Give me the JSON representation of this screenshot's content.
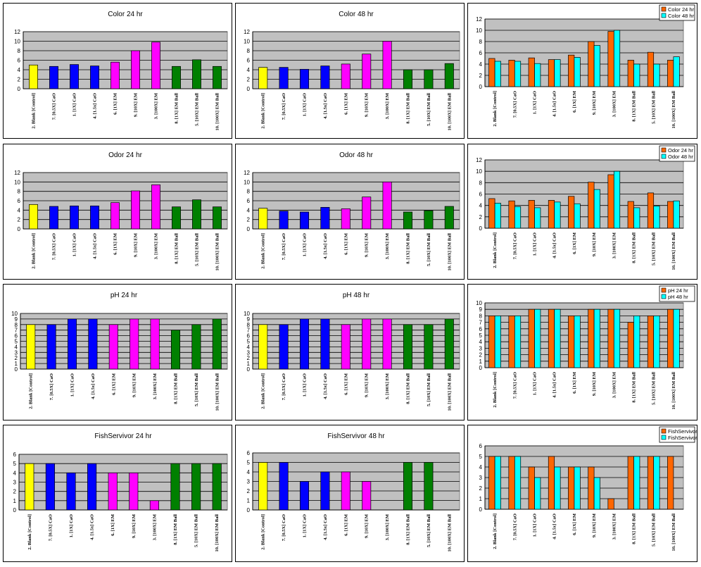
{
  "chart_data": [
    {
      "id": "c0",
      "type": "bar",
      "title": "Color 24 hr",
      "ylim": [
        0,
        12
      ],
      "yticks": [
        0,
        2,
        4,
        6,
        8,
        10,
        12
      ],
      "categories": [
        "2. Blank [Control]",
        "7. [0.5X] CaO",
        "1. [1X] CaO",
        "4. [1.5x] CaO",
        "6. [1X] EM",
        "9. [10X] EM",
        "3. [100X] EM",
        "8. [1X] EM Ball",
        "5. [10X] EM Ball",
        "10. [100X] EM Ball"
      ],
      "values": [
        5,
        4.7,
        5.1,
        4.8,
        5.6,
        8,
        9.8,
        4.7,
        6.1,
        4.7
      ],
      "colors": [
        "#ffff00",
        "#0000ff",
        "#0000ff",
        "#0000ff",
        "#ff00ff",
        "#ff00ff",
        "#ff00ff",
        "#008000",
        "#008000",
        "#008000"
      ]
    },
    {
      "id": "c1",
      "type": "bar",
      "title": "Color 48 hr",
      "ylim": [
        0,
        12
      ],
      "yticks": [
        0,
        2,
        4,
        6,
        8,
        10,
        12
      ],
      "categories": [
        "2. Blank [Control]",
        "7. [0.5X] CaO",
        "1. [1X] CaO",
        "4. [1.5x] CaO",
        "6. [1X] EM",
        "9. [10X] EM",
        "3. [100X] EM",
        "8. [1X] EM Ball",
        "5. [10X] EM Ball",
        "10. [100X] EM Ball"
      ],
      "values": [
        4.5,
        4.5,
        4.1,
        4.8,
        5.2,
        7.3,
        10,
        4,
        4,
        5.3
      ],
      "colors": [
        "#ffff00",
        "#0000ff",
        "#0000ff",
        "#0000ff",
        "#ff00ff",
        "#ff00ff",
        "#ff00ff",
        "#008000",
        "#008000",
        "#008000"
      ]
    },
    {
      "id": "c2",
      "type": "bar",
      "ylim": [
        0,
        12
      ],
      "yticks": [
        0,
        2,
        4,
        6,
        8,
        10,
        12
      ],
      "categories": [
        "2. Blank [Control]",
        "7. [0.5X] CaO",
        "1. [1X] CaO",
        "4. [1.5x] CaO",
        "6. [1X] EM",
        "9. [10X] EM",
        "3. [100X] EM",
        "8. [1X] EM Ball",
        "5. [10X] EM Ball",
        "10. [100X] EM Ball"
      ],
      "series": [
        {
          "name": "Color 24 hr",
          "color": "#ff6600",
          "values": [
            5,
            4.7,
            5.1,
            4.8,
            5.6,
            8,
            9.8,
            4.7,
            6.1,
            4.7
          ]
        },
        {
          "name": "Color 48 hr",
          "color": "#00ffff",
          "values": [
            4.5,
            4.5,
            4.1,
            4.8,
            5.2,
            7.3,
            10,
            4,
            4,
            5.3
          ]
        }
      ],
      "legend": "top-right"
    },
    {
      "id": "c3",
      "type": "bar",
      "title": "Odor 24 hr",
      "ylim": [
        0,
        12
      ],
      "yticks": [
        0,
        2,
        4,
        6,
        8,
        10,
        12
      ],
      "categories": [
        "2. Blank [Control]",
        "7. [0.5X] CaO",
        "1. [1X] CaO",
        "4. [1.5x] CaO",
        "6. [1X] EM",
        "9. [10X] EM",
        "3. [100X] EM",
        "8. [1X] EM Ball",
        "5. [10X] EM Ball",
        "10. [100X] EM Ball"
      ],
      "values": [
        5.2,
        4.8,
        4.9,
        4.9,
        5.6,
        8.1,
        9.4,
        4.7,
        6.2,
        4.7
      ],
      "colors": [
        "#ffff00",
        "#0000ff",
        "#0000ff",
        "#0000ff",
        "#ff00ff",
        "#ff00ff",
        "#ff00ff",
        "#008000",
        "#008000",
        "#008000"
      ]
    },
    {
      "id": "c4",
      "type": "bar",
      "title": "Odor 48 hr",
      "ylim": [
        0,
        12
      ],
      "yticks": [
        0,
        2,
        4,
        6,
        8,
        10,
        12
      ],
      "categories": [
        "2. Blank [Control]",
        "7. [0.5X] CaO",
        "1. [1X] CaO",
        "4. [1.5x] CaO",
        "6. [1X] EM",
        "9. [10X] EM",
        "3. [100X] EM",
        "8. [1X] EM Ball",
        "5. [10X] EM Ball",
        "10. [100X] EM Ball"
      ],
      "values": [
        4.4,
        3.8,
        3.6,
        4.6,
        4.3,
        6.8,
        10,
        3.6,
        3.9,
        4.8
      ],
      "colors": [
        "#ffff00",
        "#0000ff",
        "#0000ff",
        "#0000ff",
        "#ff00ff",
        "#ff00ff",
        "#ff00ff",
        "#008000",
        "#008000",
        "#008000"
      ]
    },
    {
      "id": "c5",
      "type": "bar",
      "ylim": [
        0,
        12
      ],
      "yticks": [
        0,
        2,
        4,
        6,
        8,
        10,
        12
      ],
      "categories": [
        "2. Blank [Control]",
        "7. [0.5X] CaO",
        "1. [1X] CaO",
        "4. [1.5x] CaO",
        "6. [1X] EM",
        "9. [10X] EM",
        "3. [100X] EM",
        "8. [1X] EM Ball",
        "5. [10X] EM Ball",
        "10. [100X] EM Ball"
      ],
      "series": [
        {
          "name": "Odor 24 hr",
          "color": "#ff6600",
          "values": [
            5.2,
            4.8,
            4.9,
            4.9,
            5.6,
            8.1,
            9.4,
            4.7,
            6.2,
            4.7
          ]
        },
        {
          "name": "Odor 48 hr",
          "color": "#00ffff",
          "values": [
            4.4,
            3.8,
            3.6,
            4.6,
            4.3,
            6.8,
            10,
            3.6,
            3.9,
            4.8
          ]
        }
      ],
      "legend": "top-right"
    },
    {
      "id": "c6",
      "type": "bar",
      "title": "pH 24 hr",
      "ylim": [
        0,
        10
      ],
      "yticks": [
        0,
        1,
        2,
        3,
        4,
        5,
        6,
        7,
        8,
        9,
        10
      ],
      "categories": [
        "2. Blank [Control]",
        "7. [0.5X] CaO",
        "1. [1X] CaO",
        "4. [1.5x] CaO",
        "6. [1X] EM",
        "9. [10X] EM",
        "3. [100X] EM",
        "8. [1X] EM Ball",
        "5. [10X] EM Ball",
        "10. [100X] EM Ball"
      ],
      "values": [
        8,
        8,
        9,
        9,
        8,
        9,
        9,
        7,
        8,
        9
      ],
      "colors": [
        "#ffff00",
        "#0000ff",
        "#0000ff",
        "#0000ff",
        "#ff00ff",
        "#ff00ff",
        "#ff00ff",
        "#008000",
        "#008000",
        "#008000"
      ]
    },
    {
      "id": "c7",
      "type": "bar",
      "title": "pH 48 hr",
      "ylim": [
        0,
        10
      ],
      "yticks": [
        0,
        1,
        2,
        3,
        4,
        5,
        6,
        7,
        8,
        9,
        10
      ],
      "categories": [
        "2. Blank [Control]",
        "7. [0.5X] CaO",
        "1. [1X] CaO",
        "4. [1.5x] CaO",
        "6. [1X] EM",
        "9. [10X] EM",
        "3. [100X] EM",
        "8. [1X] EM Ball",
        "5. [10X] EM Ball",
        "10. [100X] EM Ball"
      ],
      "values": [
        8,
        8,
        9,
        9,
        8,
        9,
        9,
        8,
        8,
        9
      ],
      "colors": [
        "#ffff00",
        "#0000ff",
        "#0000ff",
        "#0000ff",
        "#ff00ff",
        "#ff00ff",
        "#ff00ff",
        "#008000",
        "#008000",
        "#008000"
      ]
    },
    {
      "id": "c8",
      "type": "bar",
      "ylim": [
        0,
        10
      ],
      "yticks": [
        0,
        1,
        2,
        3,
        4,
        5,
        6,
        7,
        8,
        9,
        10
      ],
      "categories": [
        "2. Blank [Control]",
        "7. [0.5X] CaO",
        "1. [1X] CaO",
        "4. [1.5x] CaO",
        "6. [1X] EM",
        "9. [10X] EM",
        "3. [100X] EM",
        "8. [1X] EM Ball",
        "5. [10X] EM Ball",
        "10. [100X] EM Ball"
      ],
      "series": [
        {
          "name": "pH 24 hr",
          "color": "#ff6600",
          "values": [
            8,
            8,
            9,
            9,
            8,
            9,
            9,
            7,
            8,
            9
          ]
        },
        {
          "name": "pH 48 hr",
          "color": "#00ffff",
          "values": [
            8,
            8,
            9,
            9,
            8,
            9,
            9,
            8,
            8,
            9
          ]
        }
      ],
      "legend": "top-right"
    },
    {
      "id": "c9",
      "type": "bar",
      "title": "FishServivor 24 hr",
      "ylim": [
        0,
        6
      ],
      "yticks": [
        0,
        1,
        2,
        3,
        4,
        5,
        6
      ],
      "categories": [
        "2. Blank [Control]",
        "7. [0.5X] CaO",
        "1. [1X] CaO",
        "4. [1.5x] CaO",
        "6. [1X] EM",
        "9. [10X] EM",
        "3. [100X] EM",
        "8. [1X] EM Ball",
        "5. [10X] EM Ball",
        "10. [100X] EM Ball"
      ],
      "values": [
        5,
        5,
        4,
        5,
        4,
        4,
        1,
        5,
        5,
        5
      ],
      "colors": [
        "#ffff00",
        "#0000ff",
        "#0000ff",
        "#0000ff",
        "#ff00ff",
        "#ff00ff",
        "#ff00ff",
        "#008000",
        "#008000",
        "#008000"
      ]
    },
    {
      "id": "c10",
      "type": "bar",
      "title": "FishServivor 48 hr",
      "ylim": [
        0,
        6
      ],
      "yticks": [
        0,
        1,
        2,
        3,
        4,
        5,
        6
      ],
      "categories": [
        "2. Blank [Control]",
        "7. [0.5X] CaO",
        "1. [1X] CaO",
        "4. [1.5x] CaO",
        "6. [1X] EM",
        "9. [10X] EM",
        "3. [100X] EM",
        "8. [1X] EM Ball",
        "5. [10X] EM Ball",
        "10. [100X] EM Ball"
      ],
      "values": [
        5,
        5,
        3,
        4,
        4,
        3,
        0,
        5,
        5,
        0
      ],
      "colors": [
        "#ffff00",
        "#0000ff",
        "#0000ff",
        "#0000ff",
        "#ff00ff",
        "#ff00ff",
        "#ff00ff",
        "#008000",
        "#008000",
        "#008000"
      ]
    },
    {
      "id": "c11",
      "type": "bar",
      "ylim": [
        0,
        6
      ],
      "yticks": [
        0,
        1,
        2,
        3,
        4,
        5,
        6
      ],
      "categories": [
        "2. Blank [Control]",
        "7. [0.5X] CaO",
        "1. [1X] CaO",
        "4. [1.5x] CaO",
        "6. [1X] EM",
        "9. [10X] EM",
        "3. [100X] EM",
        "8. [1X] EM Ball",
        "5. [10X] EM Ball",
        "10. [100X] EM Ball"
      ],
      "series": [
        {
          "name": "FishServivor 24 hr",
          "color": "#ff6600",
          "values": [
            5,
            5,
            4,
            5,
            4,
            4,
            1,
            5,
            5,
            5
          ]
        },
        {
          "name": "FishServivor 48 hr",
          "color": "#00ffff",
          "values": [
            5,
            5,
            3,
            4,
            4,
            3,
            0,
            5,
            5,
            0
          ]
        }
      ],
      "legend": "top-right"
    }
  ]
}
